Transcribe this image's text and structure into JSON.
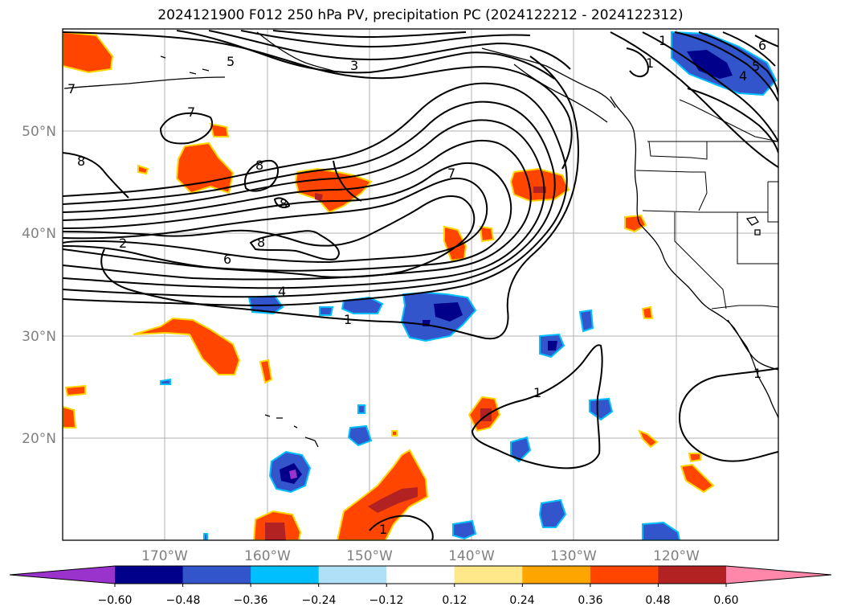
{
  "title": "2024121900 F012 250 hPa PV, precipitation PC (2024122212 - 2024122312)",
  "map": {
    "lat_labels": [
      "50°N",
      "40°N",
      "30°N",
      "20°N"
    ],
    "lon_labels": [
      "170°W",
      "160°W",
      "150°W",
      "140°W",
      "130°W",
      "120°W"
    ],
    "contour_labels": [
      "5",
      "3",
      "7",
      "1",
      "7",
      "8",
      "8",
      "8",
      "7",
      "8",
      "2",
      "6",
      "4",
      "1",
      "1",
      "1",
      "5",
      "4",
      "6",
      "1",
      "1"
    ]
  },
  "colorbar": {
    "tick_labels": [
      "−0.60",
      "−0.48",
      "−0.36",
      "−0.24",
      "−0.12",
      "0.12",
      "0.24",
      "0.36",
      "0.48",
      "0.60"
    ],
    "colors": [
      "#9933cc",
      "#00008b",
      "#3355cc",
      "#00bfff",
      "#b0e0f8",
      "#ffffff",
      "#ffe88a",
      "#ffa500",
      "#ff4500",
      "#b22222",
      "#ff88aa"
    ]
  }
}
